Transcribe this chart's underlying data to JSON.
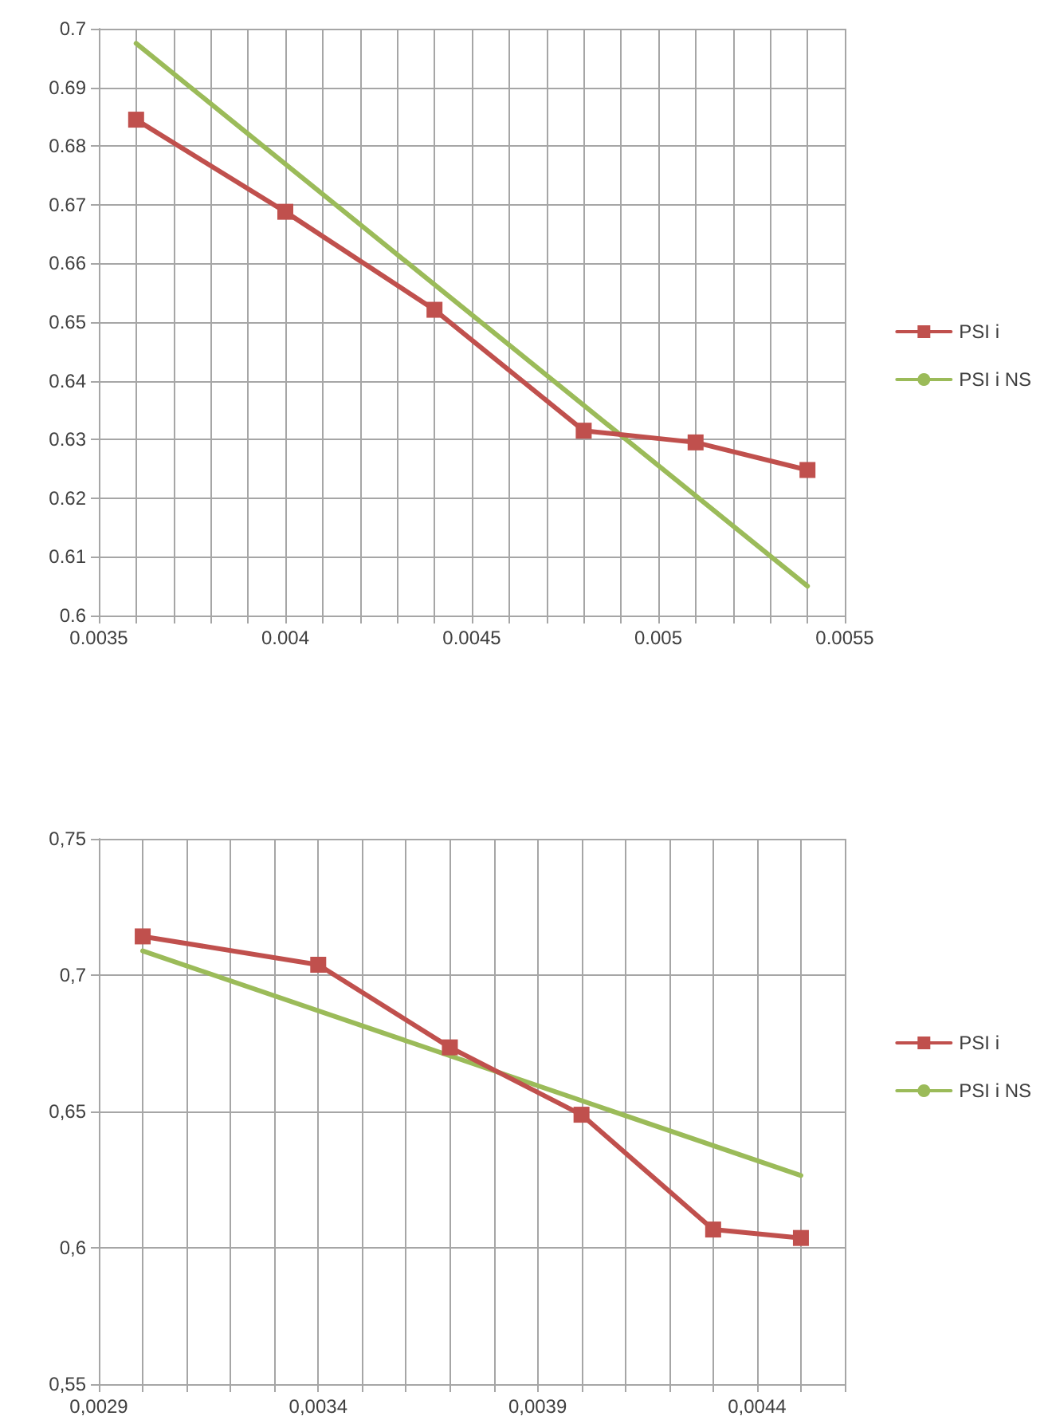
{
  "chart_data": [
    {
      "type": "line",
      "legend": "right",
      "grid": true,
      "xlim": [
        0.0035,
        0.0055
      ],
      "xticks": [
        {
          "value": 0.0035,
          "label": "0.0035"
        },
        {
          "value": 0.0036,
          "label": null
        },
        {
          "value": 0.0037,
          "label": null
        },
        {
          "value": 0.0038,
          "label": null
        },
        {
          "value": 0.0039,
          "label": null
        },
        {
          "value": 0.004,
          "label": "0.004"
        },
        {
          "value": 0.0041,
          "label": null
        },
        {
          "value": 0.0042,
          "label": null
        },
        {
          "value": 0.0043,
          "label": null
        },
        {
          "value": 0.0044,
          "label": null
        },
        {
          "value": 0.0045,
          "label": "0.0045"
        },
        {
          "value": 0.0046,
          "label": null
        },
        {
          "value": 0.0047,
          "label": null
        },
        {
          "value": 0.0048,
          "label": null
        },
        {
          "value": 0.0049,
          "label": null
        },
        {
          "value": 0.005,
          "label": "0.005"
        },
        {
          "value": 0.0051,
          "label": null
        },
        {
          "value": 0.0052,
          "label": null
        },
        {
          "value": 0.0053,
          "label": null
        },
        {
          "value": 0.0054,
          "label": null
        },
        {
          "value": 0.0055,
          "label": "0.0055"
        }
      ],
      "ylim": [
        0.6,
        0.7
      ],
      "yticks": [
        0.6,
        0.61,
        0.62,
        0.63,
        0.64,
        0.65,
        0.66,
        0.67,
        0.68,
        0.69,
        0.7
      ],
      "series": [
        {
          "name": "PSI i",
          "color": "#c0504d",
          "marker": "square",
          "x": [
            0.0036,
            0.004,
            0.0044,
            0.0048,
            0.0051,
            0.0054
          ],
          "values": [
            0.6845,
            0.6688,
            0.6521,
            0.6315,
            0.6295,
            0.6248
          ]
        },
        {
          "name": "PSI i NS",
          "color": "#9bbb59",
          "marker": "none",
          "x": [
            0.0036,
            0.0054
          ],
          "values": [
            0.6975,
            0.605
          ]
        }
      ]
    },
    {
      "type": "line",
      "legend": "right",
      "grid": true,
      "xlim": [
        0.0029,
        0.0046
      ],
      "xticks": [
        {
          "value": 0.0029,
          "label": "0,0029"
        },
        {
          "value": 0.003,
          "label": null
        },
        {
          "value": 0.0031,
          "label": null
        },
        {
          "value": 0.0032,
          "label": null
        },
        {
          "value": 0.0033,
          "label": null
        },
        {
          "value": 0.0034,
          "label": "0,0034"
        },
        {
          "value": 0.0035,
          "label": null
        },
        {
          "value": 0.0036,
          "label": null
        },
        {
          "value": 0.0037,
          "label": null
        },
        {
          "value": 0.0038,
          "label": null
        },
        {
          "value": 0.0039,
          "label": "0,0039"
        },
        {
          "value": 0.004,
          "label": null
        },
        {
          "value": 0.0041,
          "label": null
        },
        {
          "value": 0.0042,
          "label": null
        },
        {
          "value": 0.0043,
          "label": null
        },
        {
          "value": 0.0044,
          "label": "0,0044"
        },
        {
          "value": 0.0045,
          "label": null
        },
        {
          "value": 0.0046,
          "label": null
        }
      ],
      "ylim": [
        0.55,
        0.75
      ],
      "yticks": [
        {
          "value": 0.55,
          "label": "0,55"
        },
        {
          "value": 0.6,
          "label": "0,6"
        },
        {
          "value": 0.65,
          "label": "0,65"
        },
        {
          "value": 0.7,
          "label": "0,7"
        },
        {
          "value": 0.75,
          "label": "0,75"
        }
      ],
      "series": [
        {
          "name": "PSI i",
          "color": "#c0504d",
          "marker": "square",
          "x": [
            0.003,
            0.0034,
            0.0037,
            0.004,
            0.0043,
            0.0045
          ],
          "values": [
            0.7142,
            0.7038,
            0.6735,
            0.6488,
            0.6067,
            0.6036
          ]
        },
        {
          "name": "PSI i NS",
          "color": "#9bbb59",
          "marker": "none",
          "x": [
            0.003,
            0.0045
          ],
          "values": [
            0.7089,
            0.6265
          ]
        }
      ]
    }
  ]
}
